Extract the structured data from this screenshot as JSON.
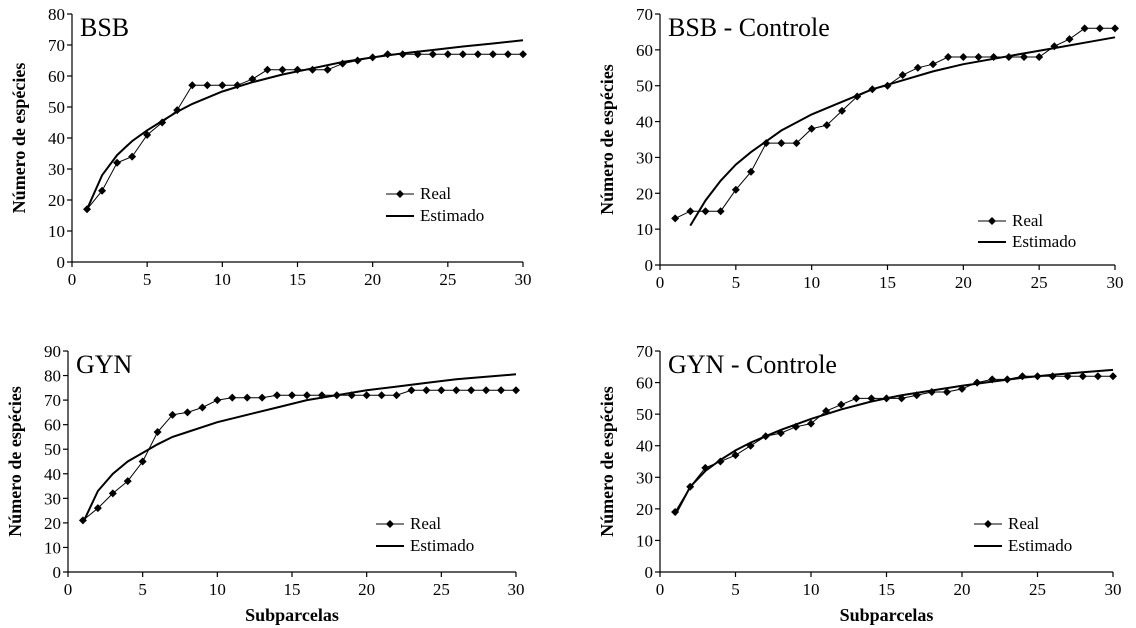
{
  "chart_data": [
    {
      "type": "line",
      "title": "BSB",
      "xlabel": "",
      "ylabel": "Número de espécies",
      "xlim": [
        0,
        30
      ],
      "ylim": [
        0,
        80
      ],
      "xticks": [
        0,
        5,
        10,
        15,
        20,
        25,
        30
      ],
      "yticks": [
        0,
        10,
        20,
        30,
        40,
        50,
        60,
        70,
        80
      ],
      "grid": false,
      "legend": "bottom-right",
      "series": [
        {
          "name": "Real",
          "style": "line-diamond",
          "x": [
            1,
            2,
            3,
            4,
            5,
            6,
            7,
            8,
            9,
            10,
            11,
            12,
            13,
            14,
            15,
            16,
            17,
            18,
            19,
            20,
            21,
            22,
            23,
            24,
            25,
            26,
            27,
            28,
            29,
            30
          ],
          "y": [
            17,
            23,
            32,
            34,
            41,
            45,
            49,
            57,
            57,
            57,
            57,
            59,
            62,
            62,
            62,
            62,
            62,
            64,
            65,
            66,
            67,
            67,
            67,
            67,
            67,
            67,
            67,
            67,
            67,
            67
          ]
        },
        {
          "name": "Estimado",
          "style": "line",
          "x": [
            1,
            2,
            3,
            4,
            5,
            6,
            7,
            8,
            9,
            10,
            12,
            14,
            16,
            18,
            20,
            22,
            24,
            26,
            28,
            30
          ],
          "y": [
            17,
            28,
            34.5,
            39,
            42.5,
            45.5,
            48.5,
            51,
            53,
            55,
            58,
            60.5,
            62.5,
            64.5,
            66,
            67.3,
            68.4,
            69.5,
            70.5,
            71.5
          ]
        }
      ]
    },
    {
      "type": "line",
      "title": "BSB - Controle",
      "xlabel": "",
      "ylabel": "Número de espécies",
      "xlim": [
        0,
        30
      ],
      "ylim": [
        0,
        70
      ],
      "xticks": [
        0,
        5,
        10,
        15,
        20,
        25,
        30
      ],
      "yticks": [
        0,
        10,
        20,
        30,
        40,
        50,
        60,
        70
      ],
      "grid": false,
      "legend": "bottom-right",
      "series": [
        {
          "name": "Real",
          "style": "line-diamond",
          "x": [
            1,
            2,
            3,
            4,
            5,
            6,
            7,
            8,
            9,
            10,
            11,
            12,
            13,
            14,
            15,
            16,
            17,
            18,
            19,
            20,
            21,
            22,
            23,
            24,
            25,
            26,
            27,
            28,
            29,
            30
          ],
          "y": [
            13,
            15,
            15,
            15,
            21,
            26,
            34,
            34,
            34,
            38,
            39,
            43,
            47,
            49,
            50,
            53,
            55,
            56,
            58,
            58,
            58,
            58,
            58,
            58,
            58,
            61,
            63,
            66,
            66,
            66
          ]
        },
        {
          "name": "Estimado",
          "style": "line",
          "x": [
            2,
            3,
            4,
            5,
            6,
            7,
            8,
            10,
            12,
            14,
            16,
            18,
            20,
            22,
            24,
            26,
            28,
            30
          ],
          "y": [
            11,
            18,
            23.5,
            28,
            31.5,
            34.5,
            37.5,
            42,
            45.5,
            49,
            51.5,
            54,
            56,
            57.5,
            59,
            60.5,
            62,
            63.5
          ]
        }
      ]
    },
    {
      "type": "line",
      "title": "GYN",
      "xlabel": "Subparcelas",
      "ylabel": "Número de espécies",
      "xlim": [
        0,
        30
      ],
      "ylim": [
        0,
        90
      ],
      "xticks": [
        0,
        5,
        10,
        15,
        20,
        25,
        30
      ],
      "yticks": [
        0,
        10,
        20,
        30,
        40,
        50,
        60,
        70,
        80,
        90
      ],
      "grid": false,
      "legend": "bottom-right",
      "series": [
        {
          "name": "Real",
          "style": "line-diamond",
          "x": [
            1,
            2,
            3,
            4,
            5,
            6,
            7,
            8,
            9,
            10,
            11,
            12,
            13,
            14,
            15,
            16,
            17,
            18,
            19,
            20,
            21,
            22,
            23,
            24,
            25,
            26,
            27,
            28,
            29,
            30
          ],
          "y": [
            21,
            26,
            32,
            37,
            45,
            57,
            64,
            65,
            67,
            70,
            71,
            71,
            71,
            72,
            72,
            72,
            72,
            72,
            72,
            72,
            72,
            72,
            74,
            74,
            74,
            74,
            74,
            74,
            74,
            74
          ]
        },
        {
          "name": "Estimado",
          "style": "line",
          "x": [
            1,
            2,
            3,
            4,
            5,
            6,
            7,
            8,
            10,
            12,
            14,
            16,
            18,
            20,
            22,
            24,
            26,
            28,
            30
          ],
          "y": [
            20,
            33,
            40,
            45,
            48.5,
            52,
            55,
            57,
            61,
            64,
            67,
            70,
            72,
            74,
            75.5,
            77,
            78.5,
            79.5,
            80.5
          ]
        }
      ]
    },
    {
      "type": "line",
      "title": "GYN - Controle",
      "xlabel": "Subparcelas",
      "ylabel": "Número de espécies",
      "xlim": [
        0,
        30
      ],
      "ylim": [
        0,
        70
      ],
      "xticks": [
        0,
        5,
        10,
        15,
        20,
        25,
        30
      ],
      "yticks": [
        0,
        10,
        20,
        30,
        40,
        50,
        60,
        70
      ],
      "grid": false,
      "legend": "bottom-right",
      "series": [
        {
          "name": "Real",
          "style": "line-diamond",
          "x": [
            1,
            2,
            3,
            4,
            5,
            6,
            7,
            8,
            9,
            10,
            11,
            12,
            13,
            14,
            15,
            16,
            17,
            18,
            19,
            20,
            21,
            22,
            23,
            24,
            25,
            26,
            27,
            28,
            29,
            30
          ],
          "y": [
            19,
            27,
            33,
            35,
            37,
            40,
            43,
            44,
            46,
            47,
            51,
            53,
            55,
            55,
            55,
            55,
            56,
            57,
            57,
            58,
            60,
            61,
            61,
            62,
            62,
            62,
            62,
            62,
            62,
            62
          ]
        },
        {
          "name": "Estimado",
          "style": "line",
          "x": [
            1,
            2,
            3,
            4,
            5,
            6,
            7,
            8,
            10,
            12,
            14,
            16,
            18,
            20,
            22,
            24,
            26,
            28,
            30
          ],
          "y": [
            18,
            27,
            32,
            35.5,
            38.5,
            41,
            43,
            45,
            48.5,
            51.5,
            54,
            56,
            57.5,
            59,
            60.3,
            61.5,
            62.5,
            63.3,
            64
          ]
        }
      ]
    }
  ]
}
